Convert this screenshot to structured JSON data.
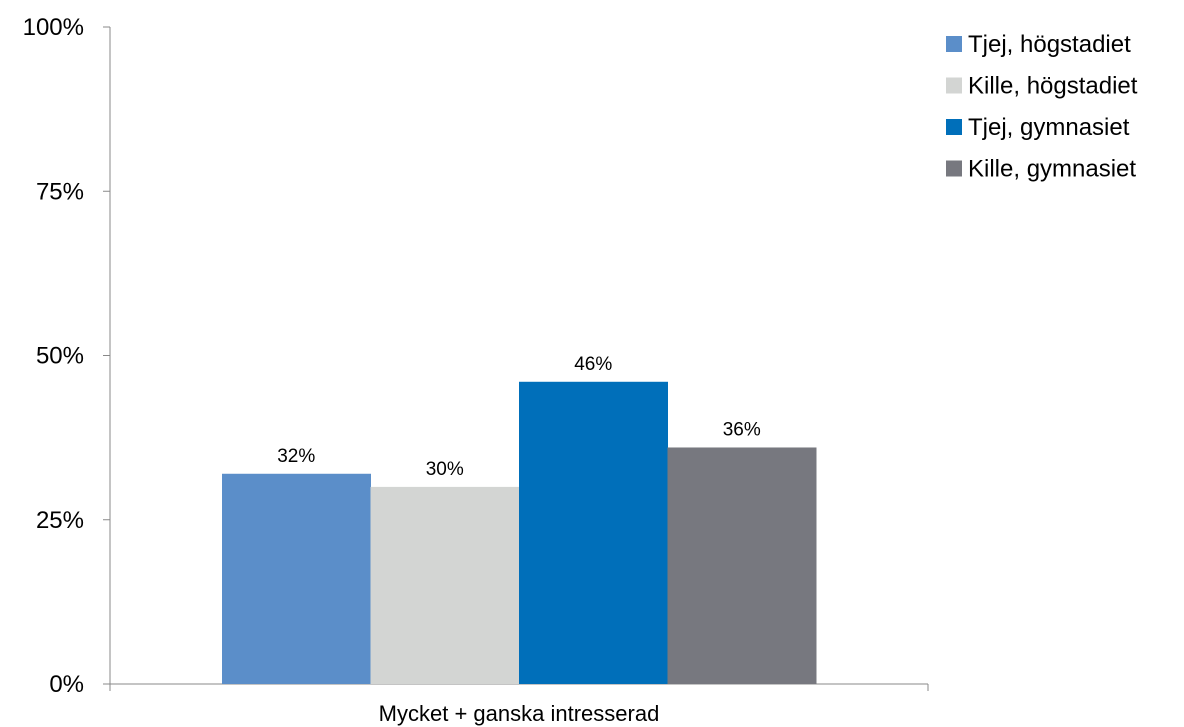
{
  "chart_data": {
    "type": "bar",
    "categories": [
      "Mycket + ganska intresserad"
    ],
    "series": [
      {
        "name": "Tjej, högstadiet",
        "values": [
          32
        ],
        "color": "#5b8ec9",
        "label": "32%"
      },
      {
        "name": "Kille, högstadiet",
        "values": [
          30
        ],
        "color": "#d3d5d3",
        "label": "30%"
      },
      {
        "name": "Tjej, gymnasiet",
        "values": [
          46
        ],
        "color": "#006fba",
        "label": "46%"
      },
      {
        "name": "Kille, gymnasiet",
        "values": [
          36
        ],
        "color": "#77787f",
        "label": "36%"
      }
    ],
    "ylim": [
      0,
      100
    ],
    "yticks": [
      0,
      25,
      50,
      75,
      100
    ],
    "ytick_labels": [
      "0%",
      "25%",
      "50%",
      "75%",
      "100%"
    ],
    "grid": false,
    "legend_position": "top-right",
    "axis_color": "#888888"
  }
}
